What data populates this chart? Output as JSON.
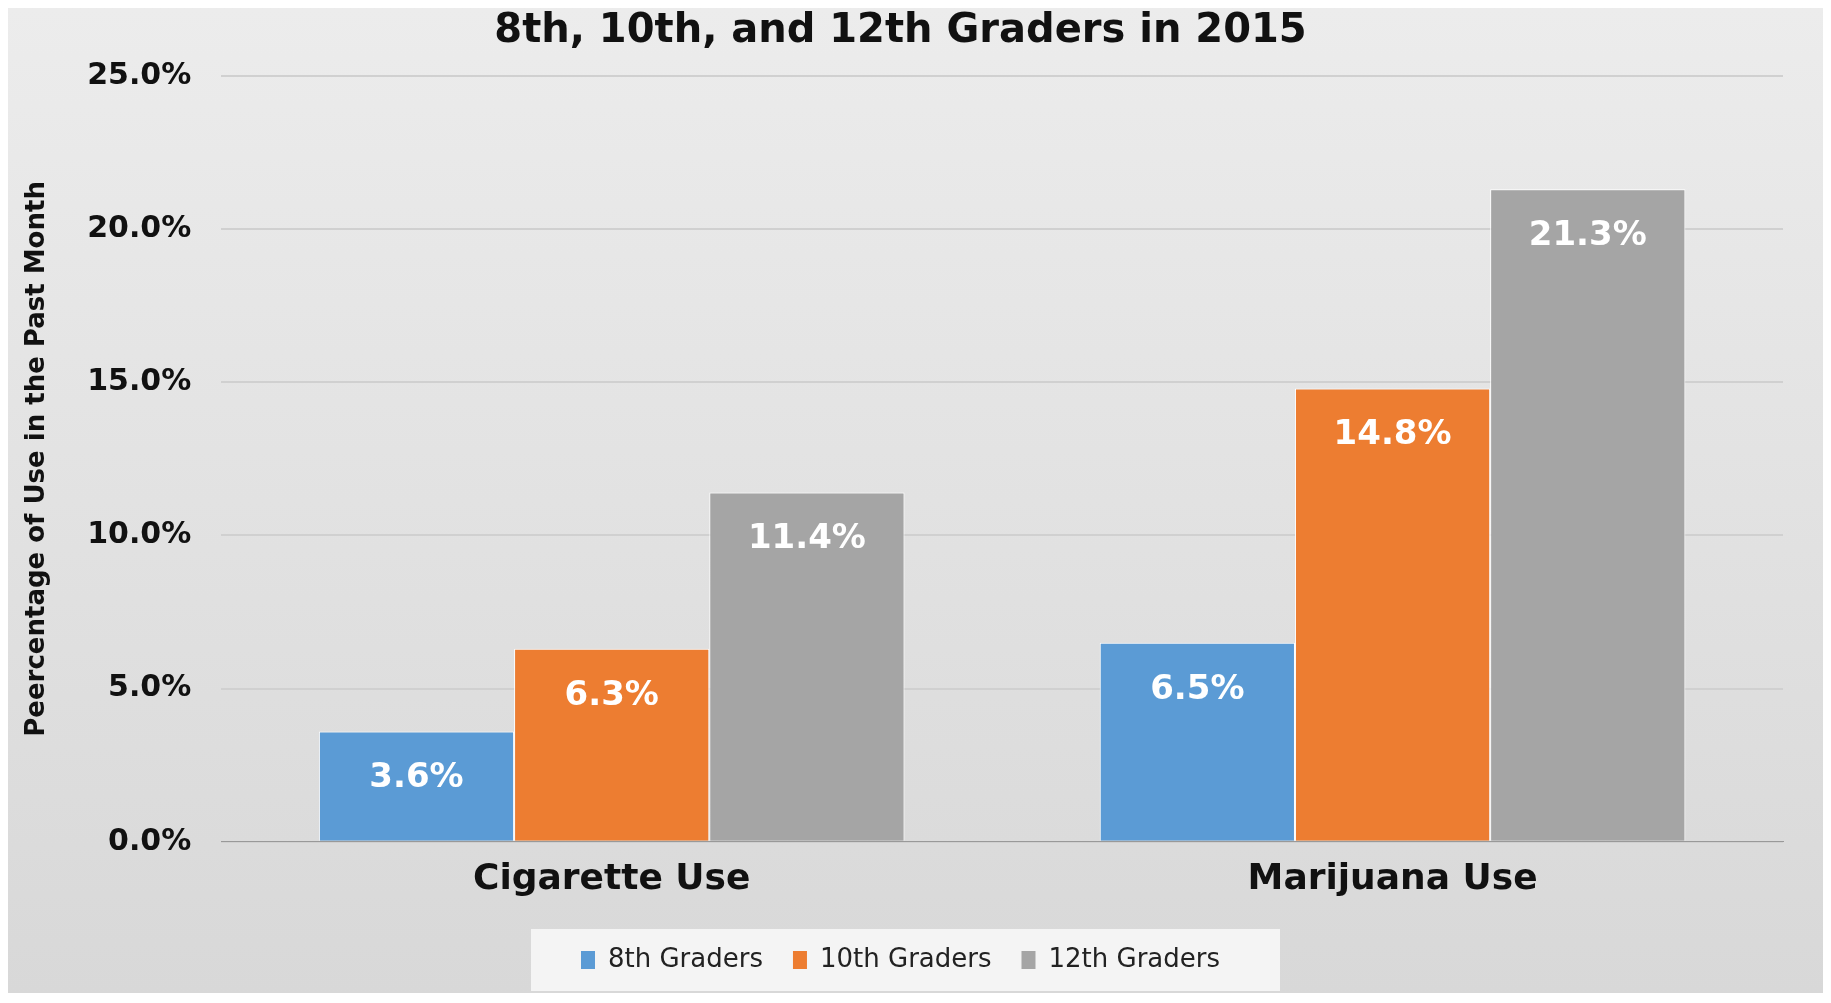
{
  "chart_data": {
    "type": "bar",
    "title": "8th, 10th, and 12th Graders in 2015",
    "ylabel": "Peercentage of Use in the Past Month",
    "categories": [
      "Cigarette Use",
      "Marijuana Use"
    ],
    "series": [
      {
        "name": "8th Graders",
        "color": "#5b9bd5",
        "values": [
          3.6,
          6.5
        ],
        "value_labels": [
          "3.6%",
          "6.5%"
        ]
      },
      {
        "name": "10th Graders",
        "color": "#ed7d31",
        "values": [
          6.3,
          14.8
        ],
        "value_labels": [
          "6.3%",
          "14.8%"
        ]
      },
      {
        "name": "12th Graders",
        "color": "#a5a5a5",
        "values": [
          11.4,
          21.3
        ],
        "value_labels": [
          "11.4%",
          "21.3%"
        ]
      }
    ],
    "ylim": [
      0,
      25
    ],
    "yticks": [
      {
        "value": 0,
        "label": "0.0%"
      },
      {
        "value": 5,
        "label": "5.0%"
      },
      {
        "value": 10,
        "label": "10.0%"
      },
      {
        "value": 15,
        "label": "15.0%"
      },
      {
        "value": 20,
        "label": "20.0%"
      },
      {
        "value": 25,
        "label": "25.0%"
      }
    ],
    "grid": "y",
    "legend": "bottom"
  }
}
